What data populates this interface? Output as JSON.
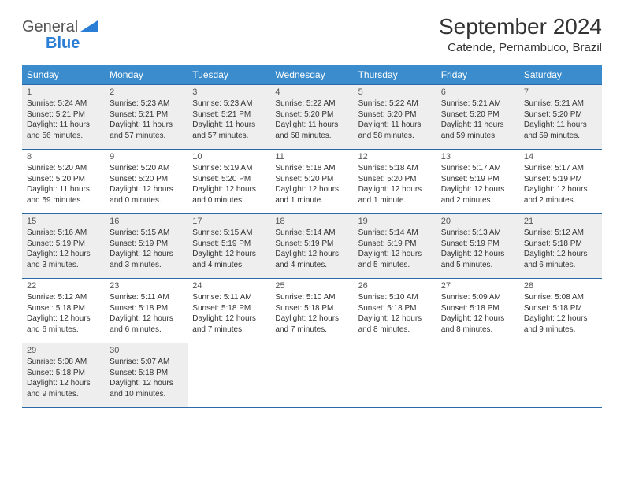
{
  "logo": {
    "word1": "General",
    "word2": "Blue"
  },
  "title": "September 2024",
  "subtitle": "Catende, Pernambuco, Brazil",
  "colors": {
    "header_bg": "#3b8ccc",
    "header_fg": "#ffffff",
    "border": "#2a6aa8",
    "alt_bg": "#eeeeee",
    "text": "#333333",
    "logo_blue": "#2a7ed6"
  },
  "days_of_week": [
    "Sunday",
    "Monday",
    "Tuesday",
    "Wednesday",
    "Thursday",
    "Friday",
    "Saturday"
  ],
  "weeks": [
    [
      {
        "n": "1",
        "sunrise": "5:24 AM",
        "sunset": "5:21 PM",
        "daylight": "11 hours and 56 minutes."
      },
      {
        "n": "2",
        "sunrise": "5:23 AM",
        "sunset": "5:21 PM",
        "daylight": "11 hours and 57 minutes."
      },
      {
        "n": "3",
        "sunrise": "5:23 AM",
        "sunset": "5:21 PM",
        "daylight": "11 hours and 57 minutes."
      },
      {
        "n": "4",
        "sunrise": "5:22 AM",
        "sunset": "5:20 PM",
        "daylight": "11 hours and 58 minutes."
      },
      {
        "n": "5",
        "sunrise": "5:22 AM",
        "sunset": "5:20 PM",
        "daylight": "11 hours and 58 minutes."
      },
      {
        "n": "6",
        "sunrise": "5:21 AM",
        "sunset": "5:20 PM",
        "daylight": "11 hours and 59 minutes."
      },
      {
        "n": "7",
        "sunrise": "5:21 AM",
        "sunset": "5:20 PM",
        "daylight": "11 hours and 59 minutes."
      }
    ],
    [
      {
        "n": "8",
        "sunrise": "5:20 AM",
        "sunset": "5:20 PM",
        "daylight": "11 hours and 59 minutes."
      },
      {
        "n": "9",
        "sunrise": "5:20 AM",
        "sunset": "5:20 PM",
        "daylight": "12 hours and 0 minutes."
      },
      {
        "n": "10",
        "sunrise": "5:19 AM",
        "sunset": "5:20 PM",
        "daylight": "12 hours and 0 minutes."
      },
      {
        "n": "11",
        "sunrise": "5:18 AM",
        "sunset": "5:20 PM",
        "daylight": "12 hours and 1 minute."
      },
      {
        "n": "12",
        "sunrise": "5:18 AM",
        "sunset": "5:20 PM",
        "daylight": "12 hours and 1 minute."
      },
      {
        "n": "13",
        "sunrise": "5:17 AM",
        "sunset": "5:19 PM",
        "daylight": "12 hours and 2 minutes."
      },
      {
        "n": "14",
        "sunrise": "5:17 AM",
        "sunset": "5:19 PM",
        "daylight": "12 hours and 2 minutes."
      }
    ],
    [
      {
        "n": "15",
        "sunrise": "5:16 AM",
        "sunset": "5:19 PM",
        "daylight": "12 hours and 3 minutes."
      },
      {
        "n": "16",
        "sunrise": "5:15 AM",
        "sunset": "5:19 PM",
        "daylight": "12 hours and 3 minutes."
      },
      {
        "n": "17",
        "sunrise": "5:15 AM",
        "sunset": "5:19 PM",
        "daylight": "12 hours and 4 minutes."
      },
      {
        "n": "18",
        "sunrise": "5:14 AM",
        "sunset": "5:19 PM",
        "daylight": "12 hours and 4 minutes."
      },
      {
        "n": "19",
        "sunrise": "5:14 AM",
        "sunset": "5:19 PM",
        "daylight": "12 hours and 5 minutes."
      },
      {
        "n": "20",
        "sunrise": "5:13 AM",
        "sunset": "5:19 PM",
        "daylight": "12 hours and 5 minutes."
      },
      {
        "n": "21",
        "sunrise": "5:12 AM",
        "sunset": "5:18 PM",
        "daylight": "12 hours and 6 minutes."
      }
    ],
    [
      {
        "n": "22",
        "sunrise": "5:12 AM",
        "sunset": "5:18 PM",
        "daylight": "12 hours and 6 minutes."
      },
      {
        "n": "23",
        "sunrise": "5:11 AM",
        "sunset": "5:18 PM",
        "daylight": "12 hours and 6 minutes."
      },
      {
        "n": "24",
        "sunrise": "5:11 AM",
        "sunset": "5:18 PM",
        "daylight": "12 hours and 7 minutes."
      },
      {
        "n": "25",
        "sunrise": "5:10 AM",
        "sunset": "5:18 PM",
        "daylight": "12 hours and 7 minutes."
      },
      {
        "n": "26",
        "sunrise": "5:10 AM",
        "sunset": "5:18 PM",
        "daylight": "12 hours and 8 minutes."
      },
      {
        "n": "27",
        "sunrise": "5:09 AM",
        "sunset": "5:18 PM",
        "daylight": "12 hours and 8 minutes."
      },
      {
        "n": "28",
        "sunrise": "5:08 AM",
        "sunset": "5:18 PM",
        "daylight": "12 hours and 9 minutes."
      }
    ],
    [
      {
        "n": "29",
        "sunrise": "5:08 AM",
        "sunset": "5:18 PM",
        "daylight": "12 hours and 9 minutes."
      },
      {
        "n": "30",
        "sunrise": "5:07 AM",
        "sunset": "5:18 PM",
        "daylight": "12 hours and 10 minutes."
      },
      null,
      null,
      null,
      null,
      null
    ]
  ]
}
